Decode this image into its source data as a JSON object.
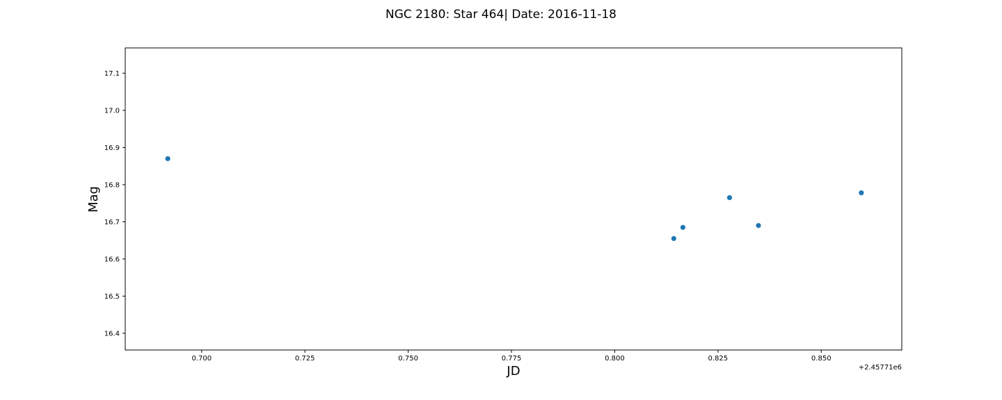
{
  "chart_data": {
    "type": "scatter",
    "title": "NGC 2180: Star 464| Date: 2016-11-18",
    "xlabel": "JD",
    "ylabel": "Mag",
    "x_offset_label": "+2.45771e6",
    "xlim": [
      0.6815,
      0.8695
    ],
    "ylim": [
      16.355,
      17.168
    ],
    "x_ticks": [
      0.7,
      0.725,
      0.75,
      0.775,
      0.8,
      0.825,
      0.85
    ],
    "x_tick_labels": [
      "0.700",
      "0.725",
      "0.750",
      "0.775",
      "0.800",
      "0.825",
      "0.850"
    ],
    "y_ticks": [
      16.4,
      16.5,
      16.6,
      16.7,
      16.8,
      16.9,
      17.0,
      17.1
    ],
    "y_tick_labels": [
      "16.4",
      "16.5",
      "16.6",
      "16.7",
      "16.8",
      "16.9",
      "17.0",
      "17.1"
    ],
    "grid": false,
    "marker_color": "#1f77b4",
    "points": [
      {
        "x": 0.6918,
        "y": 16.87
      },
      {
        "x": 0.8143,
        "y": 16.655
      },
      {
        "x": 0.8165,
        "y": 16.685
      },
      {
        "x": 0.8278,
        "y": 16.765
      },
      {
        "x": 0.8348,
        "y": 16.69
      },
      {
        "x": 0.8597,
        "y": 16.778
      }
    ]
  }
}
